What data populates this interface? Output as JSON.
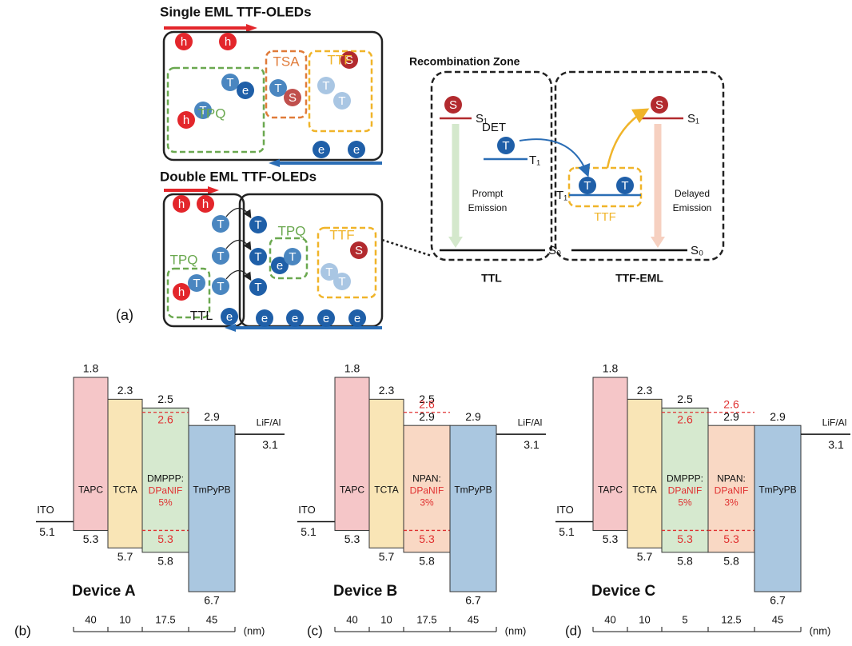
{
  "panel_a": {
    "label": "(a)",
    "single": {
      "title": "Single EML TTF-OLEDs",
      "particles": [
        "h",
        "h",
        "T",
        "e",
        "T",
        "S",
        "S",
        "T",
        "T",
        "h",
        "T",
        "e",
        "e"
      ],
      "boxes": [
        "TPQ",
        "TSA",
        "TTF"
      ]
    },
    "double": {
      "title": "Double EML TTF-OLEDs",
      "particles": [
        "h",
        "h",
        "T",
        "T",
        "T",
        "T",
        "T",
        "T",
        "e",
        "T",
        "S",
        "T",
        "T",
        "h",
        "T",
        "e",
        "e",
        "e",
        "e",
        "e"
      ],
      "boxes": [
        "TPQ",
        "TPQ",
        "TTF"
      ],
      "ttl": "TTL"
    },
    "zone": {
      "title": "Recombination Zone",
      "particles": [
        "S",
        "T",
        "T",
        "T",
        "S"
      ],
      "s1": [
        "S₁",
        "S₁"
      ],
      "t1": [
        "T₁",
        "T₁"
      ],
      "s0": [
        "S₀",
        "S₀"
      ],
      "det": "DET",
      "ttf": "TTF",
      "prompt": [
        "Prompt",
        "Emission"
      ],
      "delayed": [
        "Delayed",
        "Emission"
      ],
      "ttl": "TTL",
      "ttf_eml": "TTF-EML"
    }
  },
  "devices": [
    {
      "panel": "(b)",
      "name": "Device A",
      "anode": {
        "label": "ITO",
        "value": 5.1
      },
      "cathode": {
        "label": "LiF/Al",
        "value": 3.1
      },
      "layers": [
        {
          "name": [
            "TAPC"
          ],
          "lumo": 1.8,
          "homo": 5.3,
          "thickness": 40,
          "color": "#f5c6c8"
        },
        {
          "name": [
            "TCTA"
          ],
          "lumo": 2.3,
          "homo": 5.7,
          "thickness": 10,
          "color": "#f9e5b6"
        },
        {
          "name": [
            "DMPPP:"
          ],
          "dopant_name": [
            "DPaNIF",
            "5%"
          ],
          "lumo": 2.5,
          "homo": 5.8,
          "dopant": {
            "lumo": 2.6,
            "homo": 5.3
          },
          "thickness": 17.5,
          "color": "#d6e9cf"
        },
        {
          "name": [
            "TmPyPB"
          ],
          "lumo": 2.9,
          "homo": 6.7,
          "thickness": 45,
          "color": "#aac7e0"
        }
      ]
    },
    {
      "panel": "(c)",
      "name": "Device B",
      "anode": {
        "label": "ITO",
        "value": 5.1
      },
      "cathode": {
        "label": "LiF/Al",
        "value": 3.1
      },
      "layers": [
        {
          "name": [
            "TAPC"
          ],
          "lumo": 1.8,
          "homo": 5.3,
          "thickness": 40,
          "color": "#f5c6c8"
        },
        {
          "name": [
            "TCTA"
          ],
          "lumo": 2.3,
          "homo": 5.7,
          "thickness": 10,
          "color": "#f9e5b6"
        },
        {
          "name": [
            "NPAN:"
          ],
          "dopant_name": [
            "DPaNIF",
            "3%"
          ],
          "lumo": 2.9,
          "homo": 5.8,
          "extra_label": 2.5,
          "dopant": {
            "lumo": 2.6,
            "homo": 5.3
          },
          "thickness": 17.5,
          "color": "#f9d8c4"
        },
        {
          "name": [
            "TmPyPB"
          ],
          "lumo": 2.9,
          "homo": 6.7,
          "thickness": 45,
          "color": "#aac7e0"
        }
      ]
    },
    {
      "panel": "(d)",
      "name": "Device C",
      "anode": {
        "label": "ITO",
        "value": 5.1
      },
      "cathode": {
        "label": "LiF/Al",
        "value": 3.1
      },
      "layers": [
        {
          "name": [
            "TAPC"
          ],
          "lumo": 1.8,
          "homo": 5.3,
          "thickness": 40,
          "color": "#f5c6c8"
        },
        {
          "name": [
            "TCTA"
          ],
          "lumo": 2.3,
          "homo": 5.7,
          "thickness": 10,
          "color": "#f9e5b6"
        },
        {
          "name": [
            "DMPPP:"
          ],
          "dopant_name": [
            "DPaNIF",
            "5%"
          ],
          "lumo": 2.5,
          "homo": 5.8,
          "dopant": {
            "lumo": 2.6,
            "homo": 5.3
          },
          "thickness": 5,
          "color": "#d6e9cf"
        },
        {
          "name": [
            "NPAN:"
          ],
          "dopant_name": [
            "DPaNIF",
            "3%"
          ],
          "lumo": 2.9,
          "homo": 5.8,
          "dopant": {
            "lumo": 2.6,
            "homo": 5.3
          },
          "thickness": 12.5,
          "color": "#f9d8c4"
        },
        {
          "name": [
            "TmPyPB"
          ],
          "lumo": 2.9,
          "homo": 6.7,
          "thickness": 45,
          "color": "#aac7e0"
        }
      ]
    }
  ],
  "unit": "(nm)"
}
